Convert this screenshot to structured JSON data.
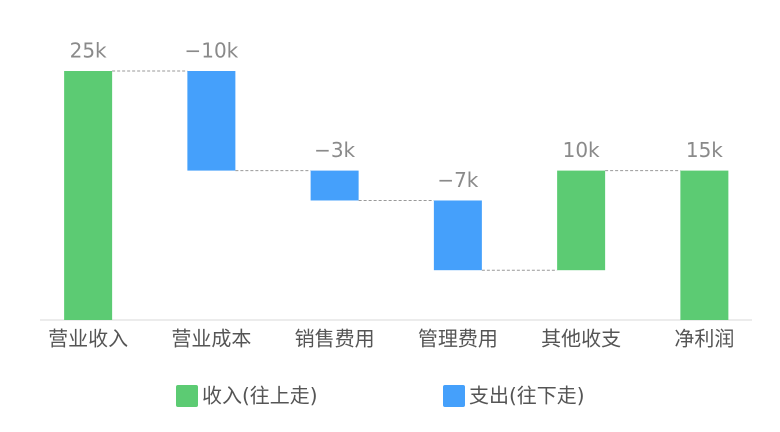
{
  "chart_data": {
    "type": "waterfall",
    "categories": [
      "营业收入",
      "营业成本",
      "销售费用",
      "管理费用",
      "其他收支",
      "净利润"
    ],
    "values": [
      25000,
      -10000,
      -3000,
      -7000,
      10000,
      15000
    ],
    "value_labels": [
      "25k",
      "−10k",
      "−3k",
      "−7k",
      "10k",
      "15k"
    ],
    "is_total": [
      false,
      false,
      false,
      false,
      false,
      true
    ],
    "series": [
      {
        "name": "收入(往上走)",
        "color": "#5ccb73"
      },
      {
        "name": "支出(往下走)",
        "color": "#45a0fb"
      }
    ],
    "ylim": [
      0,
      25000
    ]
  }
}
